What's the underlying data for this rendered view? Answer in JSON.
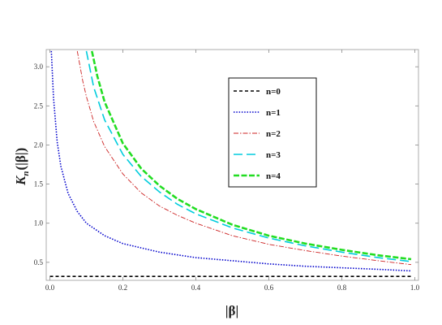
{
  "chart_data": {
    "type": "line",
    "title": "",
    "xlabel": "|β|",
    "ylabel": "K",
    "ylabel_sub": "n",
    "ylabel_tail": "(|β|)",
    "xlim": [
      -0.01,
      1.01
    ],
    "ylim": [
      0.27,
      3.22
    ],
    "x_ticks": [
      0.0,
      0.2,
      0.4,
      0.6,
      0.8,
      1.0
    ],
    "x_tick_labels": [
      "0.0",
      "0.2",
      "0.4",
      "0.6",
      "0.8",
      "1.0"
    ],
    "y_ticks": [
      0.5,
      1.0,
      1.5,
      2.0,
      2.5,
      3.0
    ],
    "y_tick_labels": [
      "0.5",
      "1.0",
      "1.5",
      "2.0",
      "2.5",
      "3.0"
    ],
    "grid": false,
    "legend_position": "upper-right-of-center",
    "series": [
      {
        "name": "n=0",
        "color": "#000000",
        "dash": "short-dash",
        "x": [
          0.0,
          0.2,
          0.4,
          0.6,
          0.8,
          0.99
        ],
        "y": [
          0.32,
          0.32,
          0.32,
          0.32,
          0.32,
          0.32
        ]
      },
      {
        "name": "n=1",
        "color": "#0000cc",
        "dash": "dotted",
        "x": [
          0.004,
          0.01,
          0.02,
          0.03,
          0.05,
          0.075,
          0.1,
          0.15,
          0.2,
          0.3,
          0.4,
          0.5,
          0.6,
          0.7,
          0.8,
          0.9,
          0.99
        ],
        "y": [
          3.2,
          2.6,
          2.04,
          1.73,
          1.38,
          1.15,
          1.0,
          0.84,
          0.74,
          0.63,
          0.56,
          0.52,
          0.48,
          0.45,
          0.43,
          0.41,
          0.39
        ]
      },
      {
        "name": "n=2",
        "color": "#cc2222",
        "dash": "dash-dot",
        "x": [
          0.075,
          0.09,
          0.1,
          0.12,
          0.15,
          0.2,
          0.25,
          0.3,
          0.35,
          0.4,
          0.5,
          0.6,
          0.7,
          0.8,
          0.9,
          0.99
        ],
        "y": [
          3.2,
          2.82,
          2.62,
          2.3,
          1.98,
          1.63,
          1.39,
          1.22,
          1.1,
          1.0,
          0.84,
          0.73,
          0.65,
          0.58,
          0.52,
          0.47
        ]
      },
      {
        "name": "n=3",
        "color": "#00ccdd",
        "dash": "long-dash",
        "x": [
          0.1,
          0.12,
          0.15,
          0.2,
          0.25,
          0.3,
          0.35,
          0.4,
          0.5,
          0.6,
          0.7,
          0.8,
          0.9,
          0.99
        ],
        "y": [
          3.2,
          2.74,
          2.32,
          1.88,
          1.6,
          1.4,
          1.24,
          1.12,
          0.94,
          0.81,
          0.71,
          0.63,
          0.56,
          0.51
        ]
      },
      {
        "name": "n=4",
        "color": "#22dd22",
        "dash": "thick-dash",
        "x": [
          0.115,
          0.13,
          0.15,
          0.2,
          0.25,
          0.3,
          0.35,
          0.4,
          0.5,
          0.6,
          0.7,
          0.8,
          0.9,
          0.99
        ],
        "y": [
          3.2,
          2.88,
          2.55,
          2.02,
          1.7,
          1.48,
          1.31,
          1.18,
          0.98,
          0.84,
          0.74,
          0.66,
          0.59,
          0.54
        ]
      }
    ]
  }
}
